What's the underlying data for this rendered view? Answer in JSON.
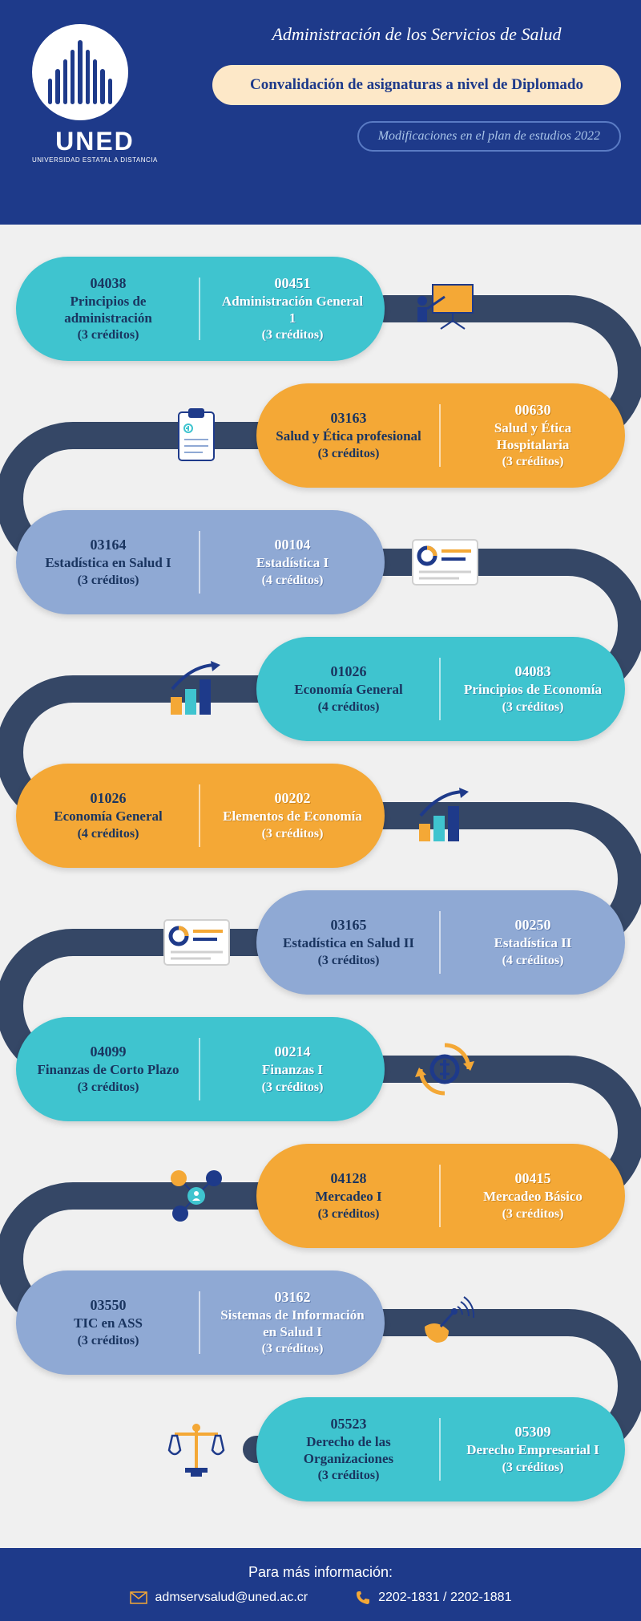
{
  "brand": "UNED",
  "tagline": "UNIVERSIDAD ESTATAL A DISTANCIA",
  "program_title": "Administración de los Servicios de Salud",
  "main_title": "Convalidación de asignaturas a nivel de Diplomado",
  "subtitle": "Modificaciones en el plan de estudios 2022",
  "colors": {
    "navy": "#1e3a8a",
    "teal": "#3fc4cf",
    "blue": "#8fa9d4",
    "orange": "#f4a836",
    "cream": "#fde8c8",
    "path": "#2a3d5e"
  },
  "rows": [
    {
      "side": "left",
      "color": "teal",
      "left": {
        "code": "04038",
        "name": "Principios de administración",
        "credits": "(3 créditos)"
      },
      "right": {
        "code": "00451",
        "name": "Administración General 1",
        "credits": "(3 créditos)"
      },
      "icon": "presentation",
      "icon_side": "right"
    },
    {
      "side": "right",
      "color": "orange",
      "left": {
        "code": "03163",
        "name": "Salud y Ética profesional",
        "credits": "(3 créditos)"
      },
      "right": {
        "code": "00630",
        "name": "Salud y Ética Hospitalaria",
        "credits": "(3 créditos)"
      },
      "icon": "clipboard",
      "icon_side": "left"
    },
    {
      "side": "left",
      "color": "blue",
      "left": {
        "code": "03164",
        "name": "Estadística en Salud I",
        "credits": "(3 créditos)"
      },
      "right": {
        "code": "00104",
        "name": "Estadística I",
        "credits": "(4 créditos)"
      },
      "icon": "card",
      "icon_side": "right"
    },
    {
      "side": "right",
      "color": "teal",
      "left": {
        "code": "01026",
        "name": "Economía General",
        "credits": "(4 créditos)"
      },
      "right": {
        "code": "04083",
        "name": "Principios de Economía",
        "credits": "(3 créditos)"
      },
      "icon": "growth",
      "icon_side": "left"
    },
    {
      "side": "left",
      "color": "orange",
      "left": {
        "code": "01026",
        "name": "Economía General",
        "credits": "(4 créditos)"
      },
      "right": {
        "code": "00202",
        "name": "Elementos de Economía",
        "credits": "(3 créditos)"
      },
      "icon": "growth",
      "icon_side": "right"
    },
    {
      "side": "right",
      "color": "blue",
      "left": {
        "code": "03165",
        "name": "Estadística en Salud II",
        "credits": "(3 créditos)"
      },
      "right": {
        "code": "00250",
        "name": "Estadística II",
        "credits": "(4 créditos)"
      },
      "icon": "card",
      "icon_side": "left"
    },
    {
      "side": "left",
      "color": "teal",
      "left": {
        "code": "04099",
        "name": "Finanzas de Corto Plazo",
        "credits": "(3 créditos)"
      },
      "right": {
        "code": "00214",
        "name": "Finanzas I",
        "credits": "(3 créditos)"
      },
      "icon": "cycle",
      "icon_side": "right"
    },
    {
      "side": "right",
      "color": "orange",
      "left": {
        "code": "04128",
        "name": "Mercadeo I",
        "credits": "(3 créditos)"
      },
      "right": {
        "code": "00415",
        "name": "Mercadeo Básico",
        "credits": "(3 créditos)"
      },
      "icon": "network",
      "icon_side": "left"
    },
    {
      "side": "left",
      "color": "blue",
      "left": {
        "code": "03550",
        "name": "TIC en ASS",
        "credits": "(3 créditos)"
      },
      "right": {
        "code": "03162",
        "name": "Sistemas de Información en Salud I",
        "credits": "(3 créditos)"
      },
      "icon": "satellite",
      "icon_side": "right"
    },
    {
      "side": "right",
      "color": "teal",
      "left": {
        "code": "05523",
        "name": "Derecho de las Organizaciones",
        "credits": "(3 créditos)"
      },
      "right": {
        "code": "05309",
        "name": "Derecho Empresarial I",
        "credits": "(3 créditos)"
      },
      "icon": "scales",
      "icon_side": "left"
    }
  ],
  "footer": {
    "title": "Para más información:",
    "email": "admservsalud@uned.ac.cr",
    "phone": "2202-1831 / 2202-1881"
  }
}
